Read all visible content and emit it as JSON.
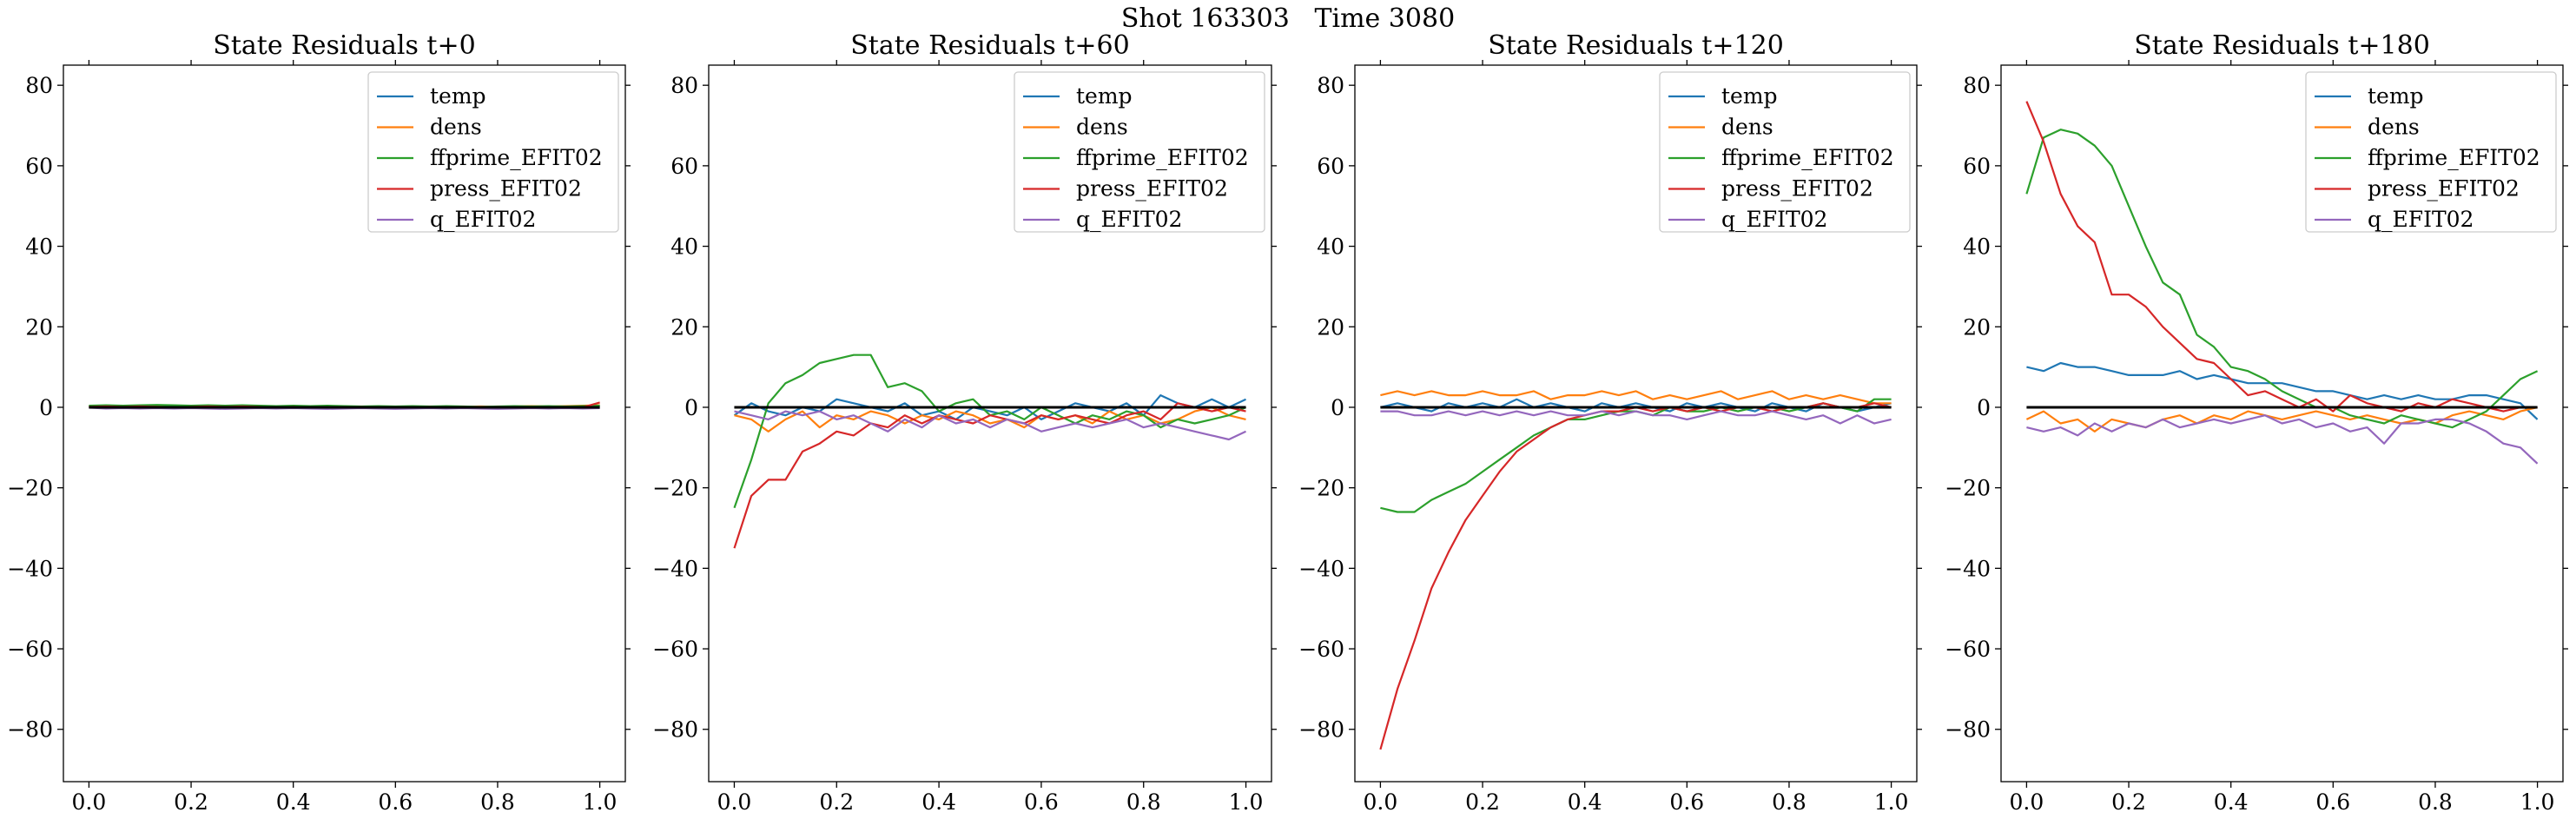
{
  "figure": {
    "title": "Shot 163303   Time 3080"
  },
  "axes_style": {
    "ylim": [
      -93,
      85
    ],
    "xlim": [
      -0.05,
      1.05
    ],
    "yticks": [
      -80,
      -60,
      -40,
      -20,
      0,
      20,
      40,
      60,
      80
    ],
    "xticks": [
      0.0,
      0.2,
      0.4,
      0.6,
      0.8,
      1.0
    ],
    "xtick_labels": [
      "0.0",
      "0.2",
      "0.4",
      "0.6",
      "0.8",
      "1.0"
    ],
    "ytick_labels": [
      "−80",
      "−60",
      "−40",
      "−20",
      "0",
      "20",
      "40",
      "60",
      "80"
    ],
    "zero_line_color": "#000000",
    "legend_location": "upper right",
    "grid": false
  },
  "chart_data": [
    {
      "type": "line",
      "title": "State Residuals t+0",
      "xlabel": "",
      "ylabel": "",
      "x": [
        0.0,
        0.0333,
        0.0667,
        0.1,
        0.1333,
        0.1667,
        0.2,
        0.2333,
        0.2667,
        0.3,
        0.3333,
        0.3667,
        0.4,
        0.4333,
        0.4667,
        0.5,
        0.5333,
        0.5667,
        0.6,
        0.6333,
        0.6667,
        0.7,
        0.7333,
        0.7667,
        0.8,
        0.8333,
        0.8667,
        0.9,
        0.9333,
        0.9667,
        1.0
      ],
      "series": [
        {
          "name": "temp",
          "color": "#1f77b4",
          "values": [
            0.2,
            0.1,
            0.0,
            0.2,
            0.1,
            0.0,
            0.1,
            0.2,
            0.1,
            0.0,
            0.1,
            0.0,
            0.1,
            0.2,
            0.1,
            0.0,
            0.1,
            0.0,
            -0.1,
            0.0,
            0.1,
            0.0,
            -0.1,
            0.0,
            0.1,
            0.0,
            0.1,
            0.0,
            0.1,
            0.2,
            0.3
          ]
        },
        {
          "name": "dens",
          "color": "#ff7f0e",
          "values": [
            0.3,
            0.2,
            0.1,
            0.2,
            0.3,
            0.2,
            0.1,
            0.2,
            0.3,
            0.2,
            0.1,
            0.2,
            0.1,
            0.2,
            0.3,
            0.2,
            0.1,
            0.0,
            0.1,
            0.2,
            0.1,
            0.0,
            0.1,
            0.2,
            0.1,
            0.2,
            0.3,
            0.2,
            0.3,
            0.4,
            0.5
          ]
        },
        {
          "name": "ffprime_EFIT02",
          "color": "#2ca02c",
          "values": [
            0.4,
            0.5,
            0.4,
            0.5,
            0.6,
            0.5,
            0.4,
            0.5,
            0.4,
            0.5,
            0.4,
            0.3,
            0.4,
            0.3,
            0.4,
            0.3,
            0.2,
            0.3,
            0.2,
            0.3,
            0.2,
            0.3,
            0.2,
            0.1,
            0.2,
            0.3,
            0.2,
            0.3,
            0.2,
            0.3,
            0.4
          ]
        },
        {
          "name": "press_EFIT02",
          "color": "#d62728",
          "values": [
            0.1,
            0.2,
            0.1,
            0.2,
            0.1,
            0.0,
            0.1,
            0.2,
            0.1,
            0.2,
            0.1,
            0.0,
            0.1,
            0.0,
            -0.1,
            0.0,
            0.1,
            0.0,
            -0.1,
            0.0,
            0.1,
            0.0,
            0.1,
            0.0,
            0.1,
            0.0,
            -0.1,
            0.0,
            0.1,
            0.0,
            1.2
          ]
        },
        {
          "name": "q_EFIT02",
          "color": "#9467bd",
          "values": [
            -0.1,
            -0.3,
            -0.2,
            -0.3,
            -0.2,
            -0.3,
            -0.2,
            -0.3,
            -0.4,
            -0.3,
            -0.2,
            -0.3,
            -0.2,
            -0.3,
            -0.4,
            -0.3,
            -0.2,
            -0.3,
            -0.4,
            -0.3,
            -0.2,
            -0.3,
            -0.2,
            -0.3,
            -0.4,
            -0.3,
            -0.2,
            -0.3,
            -0.2,
            -0.3,
            -0.2
          ]
        }
      ]
    },
    {
      "type": "line",
      "title": "State Residuals t+60",
      "xlabel": "",
      "ylabel": "",
      "x": [
        0.0,
        0.0333,
        0.0667,
        0.1,
        0.1333,
        0.1667,
        0.2,
        0.2333,
        0.2667,
        0.3,
        0.3333,
        0.3667,
        0.4,
        0.4333,
        0.4667,
        0.5,
        0.5333,
        0.5667,
        0.6,
        0.6333,
        0.6667,
        0.7,
        0.7333,
        0.7667,
        0.8,
        0.8333,
        0.8667,
        0.9,
        0.9333,
        0.9667,
        1.0
      ],
      "series": [
        {
          "name": "temp",
          "color": "#1f77b4",
          "values": [
            -2,
            1,
            -1,
            -2,
            0,
            -1,
            2,
            1,
            0,
            -1,
            1,
            -2,
            -1,
            -3,
            0,
            -1,
            -2,
            0,
            -3,
            -1,
            1,
            0,
            -1,
            1,
            -2,
            3,
            1,
            0,
            2,
            0,
            2
          ]
        },
        {
          "name": "dens",
          "color": "#ff7f0e",
          "values": [
            -2,
            -3,
            -6,
            -3,
            -1,
            -5,
            -2,
            -3,
            -1,
            -2,
            -4,
            -2,
            -3,
            -1,
            -2,
            -4,
            -3,
            -5,
            -2,
            -3,
            -2,
            -4,
            -1,
            -3,
            -2,
            -4,
            -3,
            -1,
            0,
            -2,
            -3
          ]
        },
        {
          "name": "ffprime_EFIT02",
          "color": "#2ca02c",
          "values": [
            -25,
            -13,
            1,
            6,
            8,
            11,
            12,
            13,
            13,
            5,
            6,
            4,
            -1,
            1,
            2,
            -2,
            -1,
            -3,
            0,
            -2,
            -4,
            -2,
            -3,
            -1,
            -2,
            -5,
            -3,
            -4,
            -3,
            -2,
            0
          ]
        },
        {
          "name": "press_EFIT02",
          "color": "#d62728",
          "values": [
            -35,
            -22,
            -18,
            -18,
            -11,
            -9,
            -6,
            -7,
            -4,
            -5,
            -2,
            -4,
            -2,
            -3,
            -4,
            -2,
            -3,
            -4,
            -2,
            -3,
            -2,
            -3,
            -4,
            -2,
            -1,
            -3,
            1,
            0,
            -1,
            0,
            -1
          ]
        },
        {
          "name": "q_EFIT02",
          "color": "#9467bd",
          "values": [
            -1,
            -2,
            -3,
            -1,
            -2,
            -1,
            -3,
            -2,
            -4,
            -6,
            -3,
            -5,
            -2,
            -4,
            -3,
            -5,
            -3,
            -4,
            -6,
            -5,
            -4,
            -5,
            -4,
            -3,
            -5,
            -4,
            -5,
            -6,
            -7,
            -8,
            -6
          ]
        }
      ]
    },
    {
      "type": "line",
      "title": "State Residuals t+120",
      "xlabel": "",
      "ylabel": "",
      "x": [
        0.0,
        0.0333,
        0.0667,
        0.1,
        0.1333,
        0.1667,
        0.2,
        0.2333,
        0.2667,
        0.3,
        0.3333,
        0.3667,
        0.4,
        0.4333,
        0.4667,
        0.5,
        0.5333,
        0.5667,
        0.6,
        0.6333,
        0.6667,
        0.7,
        0.7333,
        0.7667,
        0.8,
        0.8333,
        0.8667,
        0.9,
        0.9333,
        0.9667,
        1.0
      ],
      "series": [
        {
          "name": "temp",
          "color": "#1f77b4",
          "values": [
            0,
            1,
            0,
            -1,
            1,
            0,
            1,
            0,
            2,
            0,
            1,
            0,
            -1,
            1,
            0,
            1,
            0,
            -1,
            1,
            0,
            1,
            0,
            -1,
            1,
            0,
            -1,
            1,
            0,
            -1,
            0,
            1
          ]
        },
        {
          "name": "dens",
          "color": "#ff7f0e",
          "values": [
            3,
            4,
            3,
            4,
            3,
            3,
            4,
            3,
            3,
            4,
            2,
            3,
            3,
            4,
            3,
            4,
            2,
            3,
            2,
            3,
            4,
            2,
            3,
            4,
            2,
            3,
            2,
            3,
            2,
            1,
            1
          ]
        },
        {
          "name": "ffprime_EFIT02",
          "color": "#2ca02c",
          "values": [
            -25,
            -26,
            -26,
            -23,
            -21,
            -19,
            -16,
            -13,
            -10,
            -7,
            -5,
            -3,
            -3,
            -2,
            -1,
            -1,
            -2,
            0,
            -1,
            -1,
            0,
            -1,
            0,
            0,
            -1,
            0,
            1,
            0,
            -1,
            2,
            2
          ]
        },
        {
          "name": "press_EFIT02",
          "color": "#d62728",
          "values": [
            -85,
            -70,
            -58,
            -45,
            -36,
            -28,
            -22,
            -16,
            -11,
            -8,
            -5,
            -3,
            -2,
            -1,
            -1,
            0,
            -1,
            0,
            -1,
            0,
            -1,
            0,
            0,
            -1,
            0,
            0,
            1,
            0,
            0,
            1,
            0
          ]
        },
        {
          "name": "q_EFIT02",
          "color": "#9467bd",
          "values": [
            -1,
            -1,
            -2,
            -2,
            -1,
            -2,
            -1,
            -2,
            -1,
            -2,
            -1,
            -2,
            -2,
            -1,
            -2,
            -1,
            -2,
            -2,
            -3,
            -2,
            -1,
            -2,
            -2,
            -1,
            -2,
            -3,
            -2,
            -4,
            -2,
            -4,
            -3
          ]
        }
      ]
    },
    {
      "type": "line",
      "title": "State Residuals t+180",
      "xlabel": "",
      "ylabel": "",
      "x": [
        0.0,
        0.0333,
        0.0667,
        0.1,
        0.1333,
        0.1667,
        0.2,
        0.2333,
        0.2667,
        0.3,
        0.3333,
        0.3667,
        0.4,
        0.4333,
        0.4667,
        0.5,
        0.5333,
        0.5667,
        0.6,
        0.6333,
        0.6667,
        0.7,
        0.7333,
        0.7667,
        0.8,
        0.8333,
        0.8667,
        0.9,
        0.9333,
        0.9667,
        1.0
      ],
      "series": [
        {
          "name": "temp",
          "color": "#1f77b4",
          "values": [
            10,
            9,
            11,
            10,
            10,
            9,
            8,
            8,
            8,
            9,
            7,
            8,
            7,
            6,
            6,
            6,
            5,
            4,
            4,
            3,
            2,
            3,
            2,
            3,
            2,
            2,
            3,
            3,
            2,
            1,
            -3
          ]
        },
        {
          "name": "dens",
          "color": "#ff7f0e",
          "values": [
            -3,
            -1,
            -4,
            -3,
            -6,
            -3,
            -4,
            -5,
            -3,
            -2,
            -4,
            -2,
            -3,
            -1,
            -2,
            -3,
            -2,
            -1,
            -2,
            -3,
            -2,
            -3,
            -4,
            -3,
            -4,
            -2,
            -1,
            -2,
            -3,
            -1,
            0
          ]
        },
        {
          "name": "ffprime_EFIT02",
          "color": "#2ca02c",
          "values": [
            53,
            67,
            69,
            68,
            65,
            60,
            50,
            40,
            31,
            28,
            18,
            15,
            10,
            9,
            7,
            4,
            2,
            0,
            0,
            -2,
            -3,
            -4,
            -2,
            -3,
            -4,
            -5,
            -3,
            -1,
            3,
            7,
            9
          ]
        },
        {
          "name": "press_EFIT02",
          "color": "#d62728",
          "values": [
            76,
            66,
            53,
            45,
            41,
            28,
            28,
            25,
            20,
            16,
            12,
            11,
            7,
            3,
            4,
            2,
            0,
            2,
            -1,
            3,
            1,
            0,
            -1,
            1,
            0,
            2,
            1,
            0,
            -1,
            0,
            0
          ]
        },
        {
          "name": "q_EFIT02",
          "color": "#9467bd",
          "values": [
            -5,
            -6,
            -5,
            -7,
            -4,
            -6,
            -4,
            -5,
            -3,
            -5,
            -4,
            -3,
            -4,
            -3,
            -2,
            -4,
            -3,
            -5,
            -4,
            -6,
            -5,
            -9,
            -4,
            -4,
            -3,
            -3,
            -4,
            -6,
            -9,
            -10,
            -14
          ]
        }
      ]
    }
  ]
}
